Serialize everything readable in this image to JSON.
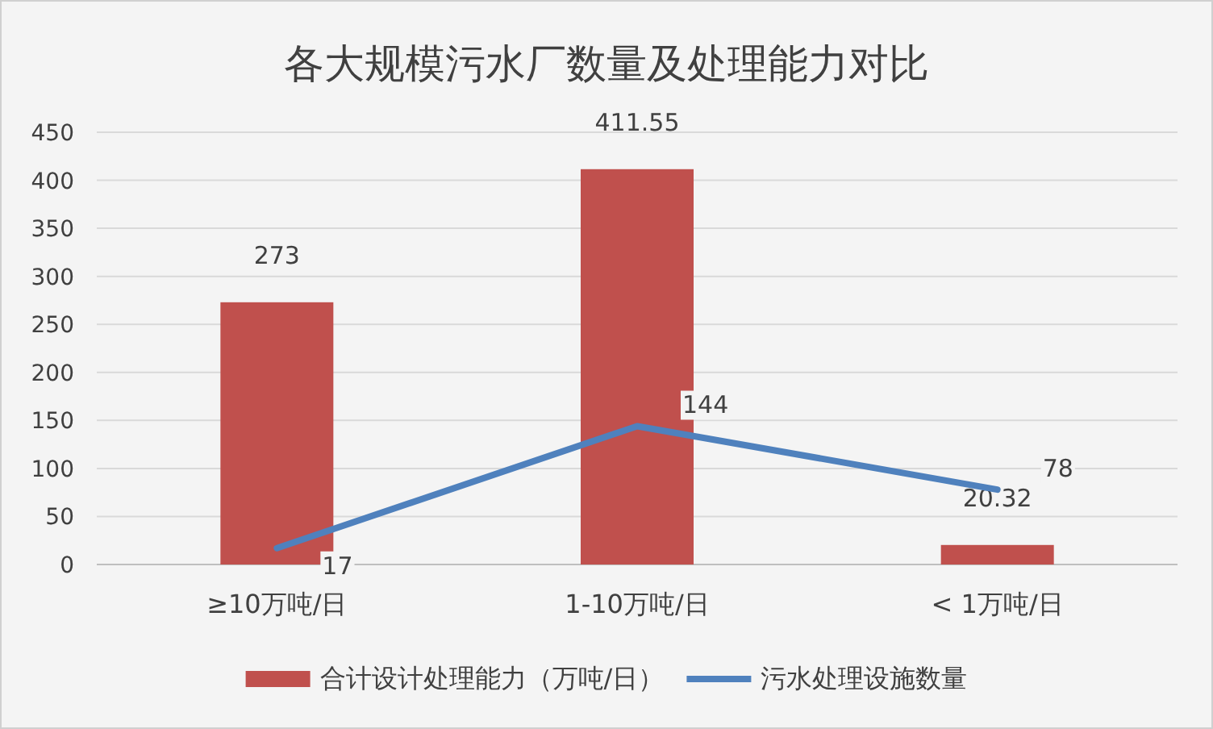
{
  "chart_data": {
    "type": "bar",
    "title": "各大规模污水厂数量及处理能力对比",
    "categories": [
      "≥10万吨/日",
      "1-10万吨/日",
      "< 1万吨/日"
    ],
    "series": [
      {
        "name": "合计设计处理能力（万吨/日）",
        "color": "#c0504d",
        "values": [
          273,
          411.55,
          20.32
        ]
      },
      {
        "name": "污水处理设施数量",
        "color": "#4f81bd",
        "type": "line",
        "values": [
          17,
          144,
          78
        ]
      }
    ],
    "ylim": [
      0,
      450
    ],
    "yticks": [
      0,
      50,
      100,
      150,
      200,
      250,
      300,
      350,
      400,
      450
    ],
    "grid": "y",
    "legend": "bottom",
    "data_labels": true
  }
}
